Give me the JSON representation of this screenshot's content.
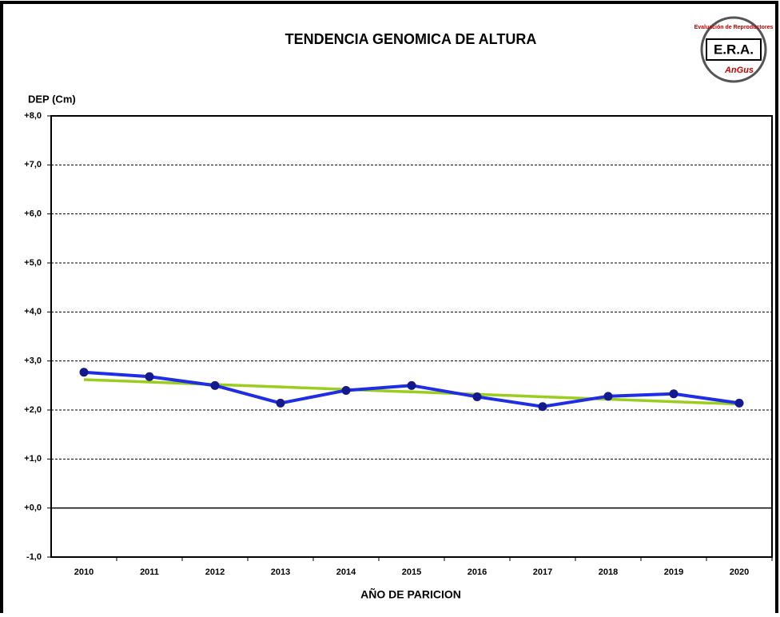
{
  "chart_data": {
    "type": "line",
    "title": "TENDENCIA GENOMICA DE ALTURA",
    "y_label": "DEP (Cm)",
    "x_label": "AÑO DE PARICION",
    "categories": [
      "2010",
      "2011",
      "2012",
      "2013",
      "2014",
      "2015",
      "2016",
      "2017",
      "2018",
      "2019",
      "2020"
    ],
    "series": [
      {
        "color": "#1f2de6",
        "marker_color": "#141a8c",
        "values": [
          2.77,
          2.68,
          2.5,
          2.14,
          2.4,
          2.5,
          2.27,
          2.07,
          2.28,
          2.33,
          2.14
        ]
      },
      {
        "color": "#9acd1e",
        "values": [
          2.62,
          2.57,
          2.52,
          2.47,
          2.42,
          2.37,
          2.32,
          2.27,
          2.22,
          2.17,
          2.12
        ]
      }
    ],
    "ylim": [
      -1,
      8
    ],
    "yticks": [
      {
        "value": -1,
        "label": "-1,0"
      },
      {
        "value": 0,
        "label": "+0,0"
      },
      {
        "value": 1,
        "label": "+1,0"
      },
      {
        "value": 2,
        "label": "+2,0"
      },
      {
        "value": 3,
        "label": "+3,0"
      },
      {
        "value": 4,
        "label": "+4,0"
      },
      {
        "value": 5,
        "label": "+5,0"
      },
      {
        "value": 6,
        "label": "+6,0"
      },
      {
        "value": 7,
        "label": "+7,0"
      },
      {
        "value": 8,
        "label": "+8,0"
      }
    ],
    "grid": true,
    "logo": {
      "top": "Evaluación de Reproductores",
      "middle": "E.R.A.",
      "bottom": "AnGus"
    }
  }
}
